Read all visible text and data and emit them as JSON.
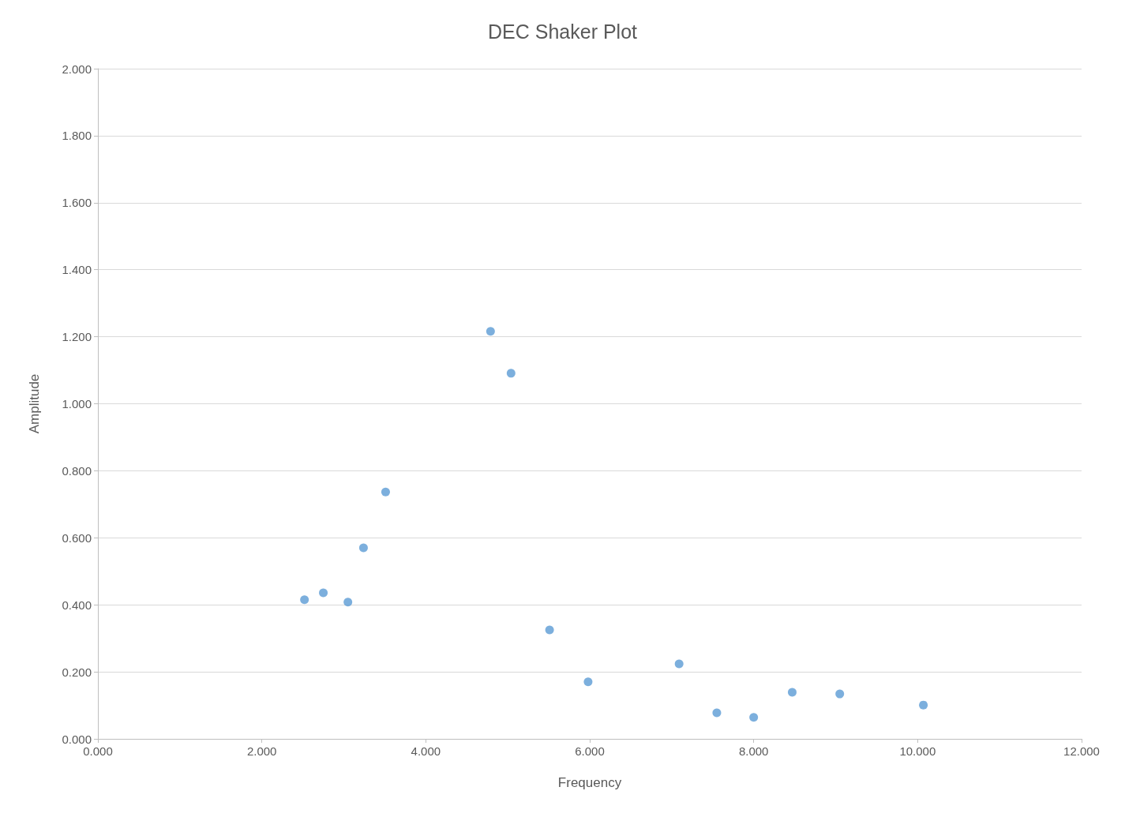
{
  "chart_data": {
    "type": "scatter",
    "title": "DEC Shaker Plot",
    "xlabel": "Frequency",
    "ylabel": "Amplitude",
    "x": [
      2.52,
      2.75,
      3.05,
      3.24,
      3.51,
      4.79,
      5.04,
      5.51,
      5.98,
      7.09,
      7.55,
      8.0,
      8.47,
      9.05,
      10.07
    ],
    "values": [
      0.415,
      0.436,
      0.408,
      0.57,
      0.737,
      1.216,
      1.091,
      0.325,
      0.17,
      0.224,
      0.078,
      0.064,
      0.139,
      0.134,
      0.101
    ],
    "color": "#5b9bd5",
    "marker": "circle",
    "xlim": [
      0,
      12
    ],
    "xticks": [
      {
        "value": 0,
        "label": "0.000"
      },
      {
        "value": 2,
        "label": "2.000"
      },
      {
        "value": 4,
        "label": "4.000"
      },
      {
        "value": 6,
        "label": "6.000"
      },
      {
        "value": 8,
        "label": "8.000"
      },
      {
        "value": 10,
        "label": "10.000"
      },
      {
        "value": 12,
        "label": "12.000"
      }
    ],
    "ylim": [
      0,
      2
    ],
    "yticks": [
      {
        "value": 0,
        "label": "0.000"
      },
      {
        "value": 0.2,
        "label": "0.200"
      },
      {
        "value": 0.4,
        "label": "0.400"
      },
      {
        "value": 0.6,
        "label": "0.600"
      },
      {
        "value": 0.8,
        "label": "0.800"
      },
      {
        "value": 1,
        "label": "1.000"
      },
      {
        "value": 1.2,
        "label": "1.200"
      },
      {
        "value": 1.4,
        "label": "1.400"
      },
      {
        "value": 1.6,
        "label": "1.600"
      },
      {
        "value": 1.8,
        "label": "1.800"
      },
      {
        "value": 2,
        "label": "2.000"
      }
    ],
    "grid": "y"
  }
}
